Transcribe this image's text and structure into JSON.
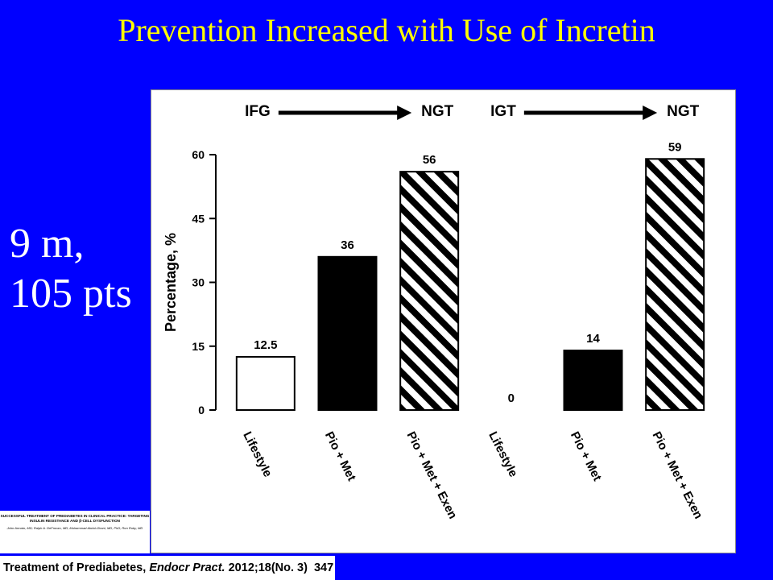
{
  "slide": {
    "title": "Prevention Increased with Use of Incretin",
    "side_note": [
      "9 m,",
      "105 pts"
    ]
  },
  "reference": {
    "thumb_title": "SUCCESSFUL TREATMENT OF PREDIABETES IN CLINICAL PRACTICE: TARGETING INSULIN RESISTANCE AND β-CELL DYSFUNCTION",
    "thumb_authors": "John Armato, MD; Ralph A. DeFronzo, MD; Muhammad Abdul-Ghani, MD, PhD; Ron Ruby, MD",
    "citation_prefix": "Treatment of Prediabetes, ",
    "citation_journal": "Endocr Pract.",
    "citation_suffix": " 2012;18(No. 3)",
    "page": "347"
  },
  "chart_data": {
    "type": "bar",
    "ylabel": "Percentage, %",
    "ylim": [
      0,
      60
    ],
    "yticks": [
      0,
      15,
      30,
      45,
      60
    ],
    "groups": [
      {
        "from": "IFG",
        "to": "NGT"
      },
      {
        "from": "IGT",
        "to": "NGT"
      }
    ],
    "categories": [
      "Lifestyle",
      "Pio + Met",
      "Pio + Met + Exen",
      "Lifestyle",
      "Pio + Met",
      "Pio + Met + Exen"
    ],
    "values": [
      12.5,
      36,
      56,
      0,
      14,
      59
    ],
    "value_labels": [
      "12.5",
      "36",
      "56",
      "0",
      "14",
      "59"
    ],
    "fills": [
      "white",
      "black",
      "hatched",
      "white",
      "black",
      "hatched"
    ],
    "colors": {
      "bar_dark": "#000000",
      "bar_light": "#ffffff",
      "hatch": "#000000"
    }
  }
}
